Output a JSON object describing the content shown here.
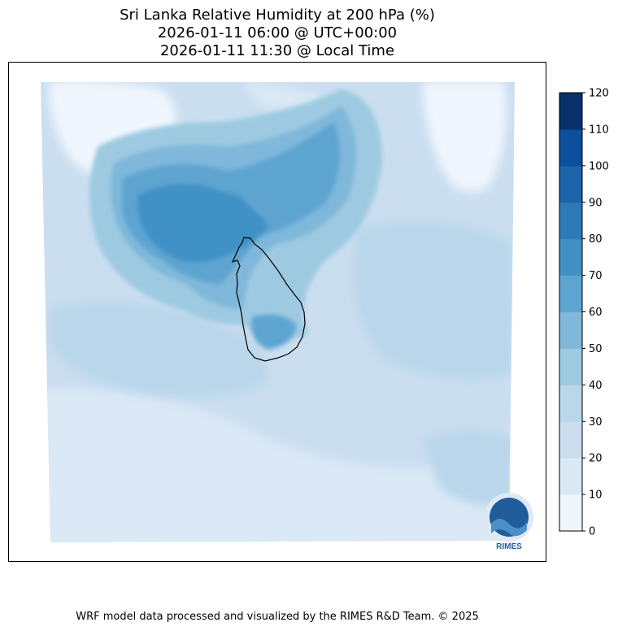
{
  "title_lines": [
    "Sri Lanka Relative Humidity at 200 hPa (%)",
    "2026-01-11 06:00 @ UTC+00:00",
    "2026-01-11 11:30 @ Local Time"
  ],
  "footer": "WRF model data processed and visualized by the RIMES R&D Team. © 2025",
  "logo": {
    "text": "RIMES",
    "colors": {
      "primary": "#1f5c99",
      "accent": "#4a90c8"
    }
  },
  "chart_data": {
    "type": "heatmap",
    "variable": "Relative Humidity at 200 hPa",
    "units": "%",
    "colorbar": {
      "levels": [
        0,
        10,
        20,
        30,
        40,
        50,
        60,
        70,
        80,
        90,
        100,
        110,
        120
      ],
      "tick_labels": [
        "0",
        "10",
        "20",
        "30",
        "40",
        "50",
        "60",
        "70",
        "80",
        "90",
        "100",
        "110",
        "120"
      ],
      "colors": [
        "#f0f6fd",
        "#dbe9f6",
        "#cadef0",
        "#b9d6ea",
        "#9ecae1",
        "#7fb8da",
        "#5da4d1",
        "#4191c6",
        "#2c7bb6",
        "#1c63a9",
        "#0c4f9c",
        "#08306b"
      ]
    },
    "field_summary": {
      "background_range": [
        20,
        40
      ],
      "max_region": "northwest of Sri Lanka, around 60-70%",
      "min_region": "edges, around 0-10%"
    },
    "grid": false
  }
}
